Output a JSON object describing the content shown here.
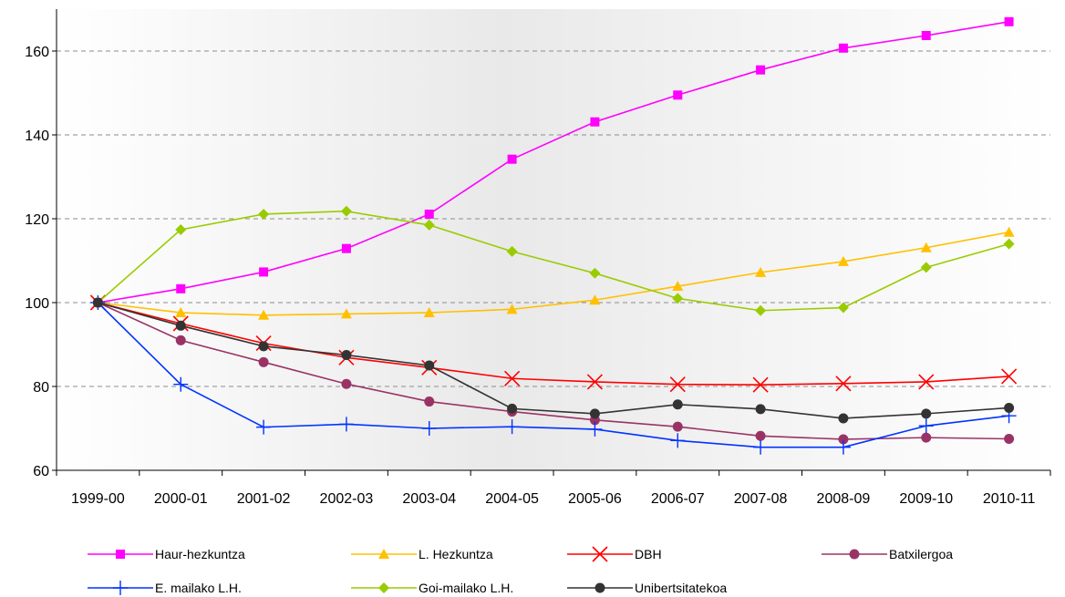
{
  "chart_data": {
    "type": "line",
    "title": "",
    "xlabel": "",
    "ylabel": "",
    "x": [
      "1999-00",
      "2000-01",
      "2001-02",
      "2002-03",
      "2003-04",
      "2004-05",
      "2005-06",
      "2006-07",
      "2007-08",
      "2008-09",
      "2009-10",
      "2010-11"
    ],
    "ylim": [
      60,
      170
    ],
    "yticks": [
      60,
      80,
      100,
      120,
      140,
      160
    ],
    "grid": "horizontal dashed",
    "legend": "bottom",
    "series": [
      {
        "name": "Haur-hezkuntza",
        "color": "#ff00ff",
        "marker": "square",
        "values": [
          100,
          103.3,
          107.3,
          112.9,
          121.1,
          134.2,
          143.1,
          149.5,
          155.5,
          160.7,
          163.7,
          167.0
        ]
      },
      {
        "name": "L. Hezkuntza",
        "color": "#ffc000",
        "marker": "triangle",
        "values": [
          100,
          97.6,
          97.0,
          97.3,
          97.6,
          98.4,
          100.6,
          103.9,
          107.2,
          109.8,
          113.1,
          116.8
        ]
      },
      {
        "name": "DBH",
        "color": "#ff0000",
        "marker": "x",
        "values": [
          100,
          95.0,
          90.3,
          86.9,
          84.5,
          81.9,
          81.1,
          80.5,
          80.4,
          80.7,
          81.1,
          82.4
        ]
      },
      {
        "name": "Batxilergoa",
        "color": "#993366",
        "marker": "circle",
        "values": [
          100,
          91.0,
          85.8,
          80.6,
          76.4,
          74.0,
          72.0,
          70.4,
          68.2,
          67.4,
          67.8,
          67.5
        ]
      },
      {
        "name": "E. mailako L.H.",
        "color": "#0033ff",
        "marker": "plus",
        "values": [
          100,
          80.5,
          70.3,
          71.0,
          70.0,
          70.4,
          69.8,
          67.1,
          65.5,
          65.5,
          70.6,
          73.0
        ]
      },
      {
        "name": "Goi-mailako L.H.",
        "color": "#99cc00",
        "marker": "diamond",
        "values": [
          100,
          117.4,
          121.1,
          121.8,
          118.5,
          112.2,
          107.0,
          101.0,
          98.1,
          98.8,
          108.4,
          114.0
        ]
      },
      {
        "name": "Unibertsitatekoa",
        "color": "#333333",
        "marker": "circle",
        "values": [
          100,
          94.5,
          89.6,
          87.5,
          85.0,
          74.7,
          73.5,
          75.7,
          74.6,
          72.4,
          73.5,
          74.9
        ]
      }
    ]
  }
}
